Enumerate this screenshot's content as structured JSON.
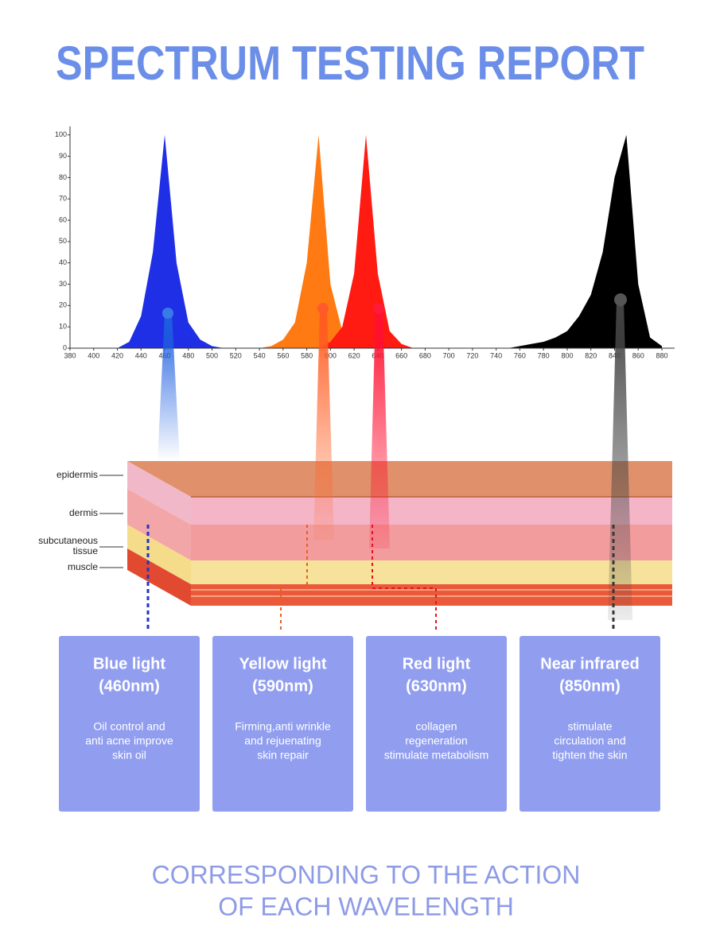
{
  "title": "SPECTRUM TESTING REPORT",
  "chart_data": {
    "type": "area",
    "x": [
      380,
      390,
      400,
      410,
      420,
      430,
      440,
      450,
      460,
      470,
      480,
      490,
      500,
      510,
      520,
      530,
      540,
      550,
      560,
      570,
      580,
      590,
      600,
      610,
      620,
      630,
      640,
      650,
      660,
      670,
      680,
      690,
      700,
      710,
      720,
      730,
      740,
      750,
      760,
      770,
      780,
      790,
      800,
      810,
      820,
      830,
      840,
      850,
      860,
      870,
      880
    ],
    "series": [
      {
        "name": "Blue light",
        "color": "#1f2fe6",
        "values": [
          0,
          0,
          0,
          0,
          0,
          3,
          15,
          45,
          100,
          40,
          12,
          4,
          1,
          0,
          0,
          0,
          0,
          0,
          0,
          0,
          0,
          0,
          0,
          0,
          0,
          0,
          0,
          0,
          0,
          0,
          0,
          0,
          0,
          0,
          0,
          0,
          0,
          0,
          0,
          0,
          0,
          0,
          0,
          0,
          0,
          0,
          0,
          0,
          0,
          0,
          0
        ]
      },
      {
        "name": "Yellow light",
        "color": "#ff7a12",
        "values": [
          0,
          0,
          0,
          0,
          0,
          0,
          0,
          0,
          0,
          0,
          0,
          0,
          0,
          0,
          0,
          0,
          0,
          1,
          4,
          12,
          40,
          100,
          30,
          8,
          2,
          0,
          0,
          0,
          0,
          0,
          0,
          0,
          0,
          0,
          0,
          0,
          0,
          0,
          0,
          0,
          0,
          0,
          0,
          0,
          0,
          0,
          0,
          0,
          0,
          0,
          0
        ]
      },
      {
        "name": "Red light",
        "color": "#ff1a12",
        "values": [
          0,
          0,
          0,
          0,
          0,
          0,
          0,
          0,
          0,
          0,
          0,
          0,
          0,
          0,
          0,
          0,
          0,
          0,
          0,
          0,
          0,
          0,
          3,
          10,
          35,
          100,
          35,
          8,
          2,
          0,
          0,
          0,
          0,
          0,
          0,
          0,
          0,
          0,
          0,
          0,
          0,
          0,
          0,
          0,
          0,
          0,
          0,
          0,
          0,
          0,
          0
        ]
      },
      {
        "name": "Near infrared",
        "color": "#000000",
        "values": [
          0,
          0,
          0,
          0,
          0,
          0,
          0,
          0,
          0,
          0,
          0,
          0,
          0,
          0,
          0,
          0,
          0,
          0,
          0,
          0,
          0,
          0,
          0,
          0,
          0,
          0,
          0,
          0,
          0,
          0,
          0,
          0,
          0,
          0,
          0,
          0,
          0,
          0,
          1,
          2,
          3,
          5,
          8,
          15,
          25,
          45,
          80,
          100,
          30,
          5,
          1
        ]
      }
    ],
    "xlim": [
      380,
      892
    ],
    "ylim": [
      0,
      104
    ],
    "xticks": [
      380,
      400,
      420,
      440,
      460,
      480,
      500,
      520,
      540,
      560,
      580,
      600,
      620,
      640,
      660,
      680,
      700,
      720,
      740,
      760,
      780,
      800,
      820,
      840,
      860,
      880
    ],
    "yticks": [
      0,
      10,
      20,
      30,
      40,
      50,
      60,
      70,
      80,
      90,
      100
    ]
  },
  "layers": [
    "epidermis",
    "dermis",
    "subcutaneous",
    "tissue",
    "muscle"
  ],
  "cards": [
    {
      "title": "Blue light",
      "subtitle": "(460nm)",
      "lines": [
        "Oil control and",
        "anti acne improve",
        "skin oil"
      ]
    },
    {
      "title": "Yellow light",
      "subtitle": "(590nm)",
      "lines": [
        "Firming,anti wrinkle",
        "and rejuenating",
        "skin repair"
      ]
    },
    {
      "title": "Red light",
      "subtitle": "(630nm)",
      "lines": [
        "collagen",
        "regeneration",
        "stimulate metabolism"
      ]
    },
    {
      "title": "Near infrared",
      "subtitle": "(850nm)",
      "lines": [
        "stimulate",
        "circulation and",
        "tighten the skin"
      ]
    }
  ],
  "footer": [
    "CORRESPONDING TO THE ACTION",
    "OF EACH WAVELENGTH"
  ]
}
